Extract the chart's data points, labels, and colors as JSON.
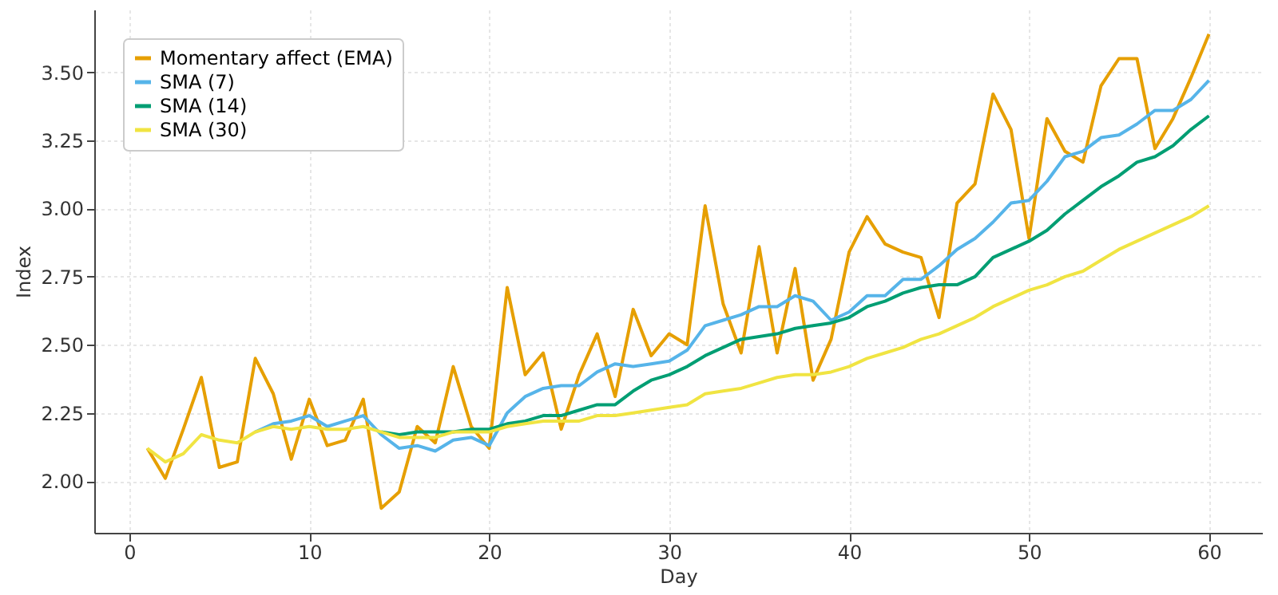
{
  "chart_data": {
    "type": "line",
    "xlabel": "Day",
    "ylabel": "Index",
    "x": [
      1,
      2,
      3,
      4,
      5,
      6,
      7,
      8,
      9,
      10,
      11,
      12,
      13,
      14,
      15,
      16,
      17,
      18,
      19,
      20,
      21,
      22,
      23,
      24,
      25,
      26,
      27,
      28,
      29,
      30,
      31,
      32,
      33,
      34,
      35,
      36,
      37,
      38,
      39,
      40,
      41,
      42,
      43,
      44,
      45,
      46,
      47,
      48,
      49,
      50,
      51,
      52,
      53,
      54,
      55,
      56,
      57,
      58,
      59,
      60
    ],
    "series": [
      {
        "name": "Momentary affect (EMA)",
        "color": "#e69f00",
        "values": [
          2.12,
          2.01,
          2.19,
          2.38,
          2.05,
          2.07,
          2.45,
          2.32,
          2.08,
          2.3,
          2.13,
          2.15,
          2.3,
          1.9,
          1.96,
          2.2,
          2.14,
          2.42,
          2.2,
          2.12,
          2.71,
          2.39,
          2.47,
          2.19,
          2.39,
          2.54,
          2.31,
          2.63,
          2.46,
          2.54,
          2.5,
          3.01,
          2.65,
          2.47,
          2.86,
          2.47,
          2.78,
          2.37,
          2.52,
          2.84,
          2.97,
          2.87,
          2.84,
          2.82,
          2.6,
          3.02,
          3.09,
          3.42,
          3.29,
          2.89,
          3.33,
          3.21,
          3.17,
          3.45,
          3.55,
          3.55,
          3.22,
          3.33,
          3.48,
          3.64
        ]
      },
      {
        "name": "SMA (7)",
        "color": "#56b4e9",
        "values": [
          null,
          null,
          null,
          null,
          null,
          null,
          2.18,
          2.21,
          2.22,
          2.24,
          2.2,
          2.22,
          2.24,
          2.17,
          2.12,
          2.13,
          2.11,
          2.15,
          2.16,
          2.13,
          2.25,
          2.31,
          2.34,
          2.35,
          2.35,
          2.4,
          2.43,
          2.42,
          2.43,
          2.44,
          2.48,
          2.57,
          2.59,
          2.61,
          2.64,
          2.64,
          2.68,
          2.66,
          2.59,
          2.62,
          2.68,
          2.68,
          2.74,
          2.74,
          2.79,
          2.85,
          2.89,
          2.95,
          3.02,
          3.03,
          3.1,
          3.19,
          3.21,
          3.26,
          3.27,
          3.31,
          3.36,
          3.36,
          3.4,
          3.47
        ]
      },
      {
        "name": "SMA (14)",
        "color": "#009e73",
        "values": [
          null,
          null,
          null,
          null,
          null,
          null,
          null,
          null,
          null,
          null,
          null,
          null,
          null,
          2.18,
          2.17,
          2.18,
          2.18,
          2.18,
          2.19,
          2.19,
          2.21,
          2.22,
          2.24,
          2.24,
          2.26,
          2.28,
          2.28,
          2.33,
          2.37,
          2.39,
          2.42,
          2.46,
          2.49,
          2.52,
          2.53,
          2.54,
          2.56,
          2.57,
          2.58,
          2.6,
          2.64,
          2.66,
          2.69,
          2.71,
          2.72,
          2.72,
          2.75,
          2.82,
          2.85,
          2.88,
          2.92,
          2.98,
          3.03,
          3.08,
          3.12,
          3.17,
          3.19,
          3.23,
          3.29,
          3.34
        ]
      },
      {
        "name": "SMA (30)",
        "color": "#f0e442",
        "values": [
          2.12,
          2.07,
          2.1,
          2.17,
          2.15,
          2.14,
          2.18,
          2.2,
          2.19,
          2.2,
          2.19,
          2.19,
          2.2,
          2.18,
          2.16,
          2.16,
          2.16,
          2.18,
          2.18,
          2.18,
          2.2,
          2.21,
          2.22,
          2.22,
          2.22,
          2.24,
          2.24,
          2.25,
          2.26,
          2.27,
          2.28,
          2.32,
          2.33,
          2.34,
          2.36,
          2.38,
          2.39,
          2.39,
          2.4,
          2.42,
          2.45,
          2.47,
          2.49,
          2.52,
          2.54,
          2.57,
          2.6,
          2.64,
          2.67,
          2.7,
          2.72,
          2.75,
          2.77,
          2.81,
          2.85,
          2.88,
          2.91,
          2.94,
          2.97,
          3.01
        ]
      }
    ],
    "xlim": [
      -1.95,
      62.95
    ],
    "xticks": [
      0,
      10,
      20,
      30,
      40,
      50,
      60
    ],
    "ylim": [
      1.81,
      3.73
    ],
    "yticks": [
      {
        "value": 2,
        "label": "2.00"
      },
      {
        "value": 2.25,
        "label": "2.25"
      },
      {
        "value": 2.5,
        "label": "2.50"
      },
      {
        "value": 2.75,
        "label": "2.75"
      },
      {
        "value": 3,
        "label": "3.00"
      },
      {
        "value": 3.25,
        "label": "3.25"
      },
      {
        "value": 3.5,
        "label": "3.50"
      }
    ],
    "grid": true,
    "legend": "top left",
    "line_style": "solid",
    "marker": "none"
  }
}
